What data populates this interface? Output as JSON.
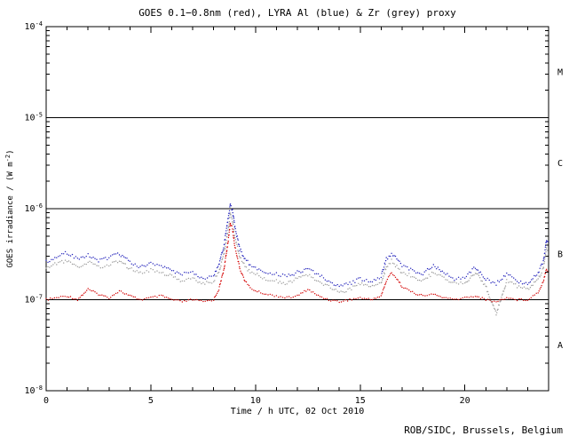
{
  "title": "GOES 0.1−0.8nm (red), LYRA Al (blue) & Zr (grey) proxy",
  "footer": "ROB/SIDC, Brussels, Belgium",
  "chart_data": {
    "type": "scatter",
    "title": "GOES 0.1−0.8nm (red), LYRA Al (blue) & Zr (grey) proxy",
    "xlabel": "Time / h UTC, 02 Oct 2010",
    "ylabel_main": "GOES irradiance / (W m",
    "ylabel_sup": "-2",
    "ylabel_close": ")",
    "xlim": [
      0,
      24
    ],
    "x_major_ticks": [
      0,
      5,
      10,
      15,
      20
    ],
    "x_minor_step": 1,
    "ylog_exponents": [
      -8,
      -7,
      -6,
      -5,
      -4
    ],
    "threshold_lines": [
      1e-05,
      1e-06,
      1e-07
    ],
    "class_labels": [
      {
        "label": "M",
        "y": 3.16e-05
      },
      {
        "label": "C",
        "y": 3.16e-06
      },
      {
        "label": "B",
        "y": 3.16e-07
      },
      {
        "label": "A",
        "y": 3.16e-08
      }
    ],
    "grid": false,
    "legend": "colors named in title",
    "unit_scale": 1e-07,
    "x": [
      0,
      0.5,
      1,
      1.5,
      2,
      2.5,
      3,
      3.5,
      4,
      4.5,
      5,
      5.5,
      6,
      6.5,
      7,
      7.5,
      8,
      8.25,
      8.5,
      8.7,
      8.8,
      8.9,
      9,
      9.25,
      9.5,
      9.75,
      10,
      10.5,
      11,
      11.5,
      12,
      12.5,
      13,
      13.5,
      14,
      14.5,
      15,
      15.5,
      16,
      16.25,
      16.5,
      16.75,
      17,
      17.5,
      18,
      18.5,
      19,
      19.5,
      20,
      20.5,
      21,
      21.5,
      22,
      22.5,
      23,
      23.25,
      23.5,
      23.75,
      23.9,
      24
    ],
    "series": [
      {
        "name": "GOES 0.1-0.8nm",
        "color": "#d40000",
        "values_e7": [
          1.0,
          1.05,
          1.1,
          1.0,
          1.3,
          1.15,
          1.05,
          1.25,
          1.1,
          1.0,
          1.05,
          1.1,
          1.0,
          0.95,
          1.0,
          0.95,
          1.0,
          1.3,
          2.2,
          4.5,
          7.0,
          6.0,
          4.0,
          2.2,
          1.6,
          1.35,
          1.25,
          1.15,
          1.1,
          1.05,
          1.1,
          1.3,
          1.1,
          1.0,
          0.95,
          1.0,
          1.05,
          1.0,
          1.1,
          1.6,
          2.0,
          1.7,
          1.4,
          1.2,
          1.1,
          1.15,
          1.05,
          1.0,
          1.05,
          1.1,
          1.0,
          0.95,
          1.05,
          1.0,
          1.0,
          1.1,
          1.2,
          1.6,
          2.2,
          2.0
        ]
      },
      {
        "name": "LYRA Al proxy",
        "color": "#2222bb",
        "values_e7": [
          2.6,
          3.0,
          3.3,
          2.8,
          3.1,
          2.7,
          2.9,
          3.2,
          2.6,
          2.3,
          2.5,
          2.4,
          2.1,
          1.9,
          2.0,
          1.7,
          1.8,
          2.4,
          4.0,
          8.0,
          11.0,
          9.5,
          6.5,
          3.6,
          2.8,
          2.4,
          2.2,
          2.0,
          1.9,
          1.8,
          2.0,
          2.2,
          1.9,
          1.6,
          1.4,
          1.5,
          1.7,
          1.6,
          1.8,
          2.8,
          3.2,
          2.8,
          2.4,
          2.1,
          1.9,
          2.4,
          2.0,
          1.7,
          1.8,
          2.3,
          1.7,
          1.5,
          1.9,
          1.6,
          1.5,
          1.7,
          2.0,
          2.6,
          4.5,
          4.0
        ]
      },
      {
        "name": "LYRA Zr proxy",
        "color": "#9a9a9a",
        "values_e7": [
          2.2,
          2.5,
          2.7,
          2.3,
          2.6,
          2.3,
          2.4,
          2.7,
          2.2,
          2.0,
          2.1,
          2.0,
          1.8,
          1.6,
          1.7,
          1.5,
          1.6,
          2.0,
          3.2,
          6.0,
          9.0,
          7.5,
          5.0,
          2.9,
          2.3,
          2.0,
          1.9,
          1.7,
          1.6,
          1.5,
          1.7,
          1.9,
          1.6,
          1.4,
          1.2,
          1.3,
          1.5,
          1.4,
          1.5,
          2.3,
          2.7,
          2.3,
          2.0,
          1.8,
          1.6,
          2.0,
          1.7,
          1.5,
          1.5,
          2.0,
          1.4,
          0.7,
          1.6,
          1.4,
          1.3,
          1.5,
          1.7,
          2.2,
          3.8,
          3.4
        ]
      }
    ]
  }
}
